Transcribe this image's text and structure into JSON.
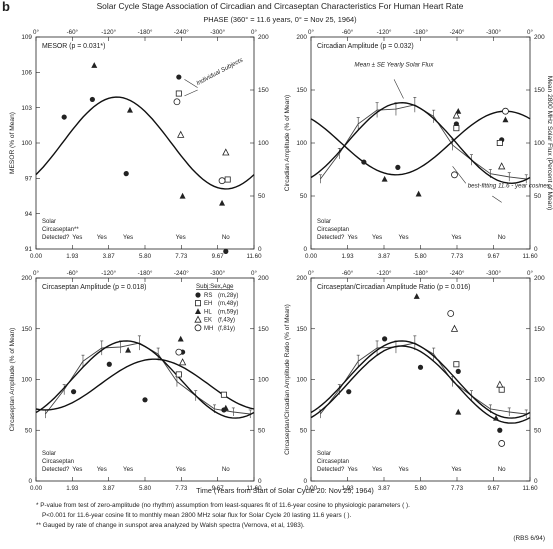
{
  "figure": {
    "panel_letter": "b",
    "title": "Solar Cycle Stage Association of Circadian and Circaseptan Characteristics For Human Heart Rate",
    "phase_label": "PHASE (360° = 11.6 years, 0° = Nov 25, 1964)",
    "xlabel": "Time (Years from Start of Solar Cycle 20: Nov 25, 1964)",
    "right_axis_label": "Mean 2800 MHz Solar Flux (Percent of Mean)",
    "footnotes": [
      "* P-value from test of zero-amplitude (no rhythm) assumption from least-squares fit of 11.6-year cosine to physiologic parameters (          ).",
      "P<0.001 for 11.6-year cosine fit to monthly mean 2800 MHz solar flux for Solar Cycle 20 lasting 11.6 years (          ).",
      "** Gauged by rate of change in sunspot area analyzed by Walsh spectra (Vernova, et al, 1983)."
    ],
    "credit": "(RBS 6/94)"
  },
  "chart_data": [
    {
      "type": "scatter",
      "title": "MESOR (p = 0.031*)",
      "ylabel": "MESOR (% of Mean)",
      "ylim": [
        91,
        109
      ],
      "yticks": [
        "91",
        "94",
        "97",
        "100",
        "103",
        "106",
        "109"
      ],
      "xticks": [
        "0.00",
        "1.93",
        "3.87",
        "5.80",
        "7.73",
        "9.67",
        "11.60"
      ],
      "phase_ticks": [
        "0°",
        "-60°",
        "-120°",
        "-180°",
        "-240°",
        "-300°",
        "0°"
      ],
      "annotations": [
        "Individual Subjects"
      ],
      "detected_label": "Solar Circaseptan** Detected?",
      "detected": [
        "Yes",
        "Yes",
        "Yes",
        "Yes",
        "No"
      ],
      "fit": {
        "mesor": 100.0,
        "amplitude": 3.9,
        "peak_year": 4.3
      },
      "series": [
        {
          "name": "RS",
          "marker": "filled-circle",
          "x": [
            1.5,
            3.0,
            4.8,
            7.6,
            10.1
          ],
          "y": [
            102.2,
            103.7,
            97.4,
            105.6,
            90.8
          ]
        },
        {
          "name": "EH",
          "marker": "open-square",
          "x": [
            7.6,
            10.2
          ],
          "y": [
            104.2,
            96.9
          ]
        },
        {
          "name": "HL",
          "marker": "filled-triangle",
          "x": [
            3.1,
            5.0,
            7.8,
            9.9
          ],
          "y": [
            106.6,
            102.8,
            95.5,
            94.9
          ]
        },
        {
          "name": "EK",
          "marker": "open-triangle",
          "x": [
            7.7,
            10.1
          ],
          "y": [
            100.7,
            99.2
          ]
        },
        {
          "name": "MH",
          "marker": "open-circle",
          "x": [
            7.5,
            9.9
          ],
          "y": [
            103.5,
            96.8
          ]
        }
      ]
    },
    {
      "type": "scatter",
      "title": "Circadian Amplitude (p = 0.032)",
      "ylabel": "Circadian Amplitude (% of Mean)",
      "ylim": [
        0,
        200
      ],
      "yticks": [
        "0",
        "50",
        "100",
        "150",
        "200"
      ],
      "xticks": [
        "0.00",
        "1.93",
        "3.87",
        "5.80",
        "7.73",
        "9.67",
        "11.60"
      ],
      "phase_ticks": [
        "0°",
        "-60°",
        "-120°",
        "-180°",
        "-240°",
        "-300°",
        "0°"
      ],
      "annotations": [
        "Mean ± SE Yearly Solar Flux",
        "best-fitting 11.6 - year cosines"
      ],
      "detected_label": "Solar Circaseptan Detected?",
      "detected": [
        "Yes",
        "Yes",
        "Yes",
        "Yes",
        "No"
      ],
      "fit": {
        "mesor": 100.0,
        "amplitude": 30.0,
        "peak_year": 10.3
      },
      "series": [
        {
          "name": "RS",
          "marker": "filled-circle",
          "x": [
            2.8,
            4.6,
            7.7,
            10.1
          ],
          "y": [
            82,
            77,
            118,
            103
          ]
        },
        {
          "name": "EH",
          "marker": "open-square",
          "x": [
            7.7,
            10.0
          ],
          "y": [
            114,
            100
          ]
        },
        {
          "name": "HL",
          "marker": "filled-triangle",
          "x": [
            3.9,
            5.7,
            7.8,
            10.3
          ],
          "y": [
            66,
            52,
            130,
            122
          ]
        },
        {
          "name": "EK",
          "marker": "open-triangle",
          "x": [
            7.7,
            10.1
          ],
          "y": [
            126,
            78
          ]
        },
        {
          "name": "MH",
          "marker": "open-circle",
          "x": [
            7.6,
            10.3
          ],
          "y": [
            70,
            130
          ]
        }
      ]
    },
    {
      "type": "scatter",
      "title": "Circaseptan Amplitude (p = 0.018)",
      "ylabel": "Circaseptan Amplitude (% of Mean)",
      "ylim": [
        0,
        200
      ],
      "yticks": [
        "0",
        "50",
        "100",
        "150",
        "200"
      ],
      "xticks": [
        "0.00",
        "1.93",
        "3.87",
        "5.80",
        "7.73",
        "9.67",
        "11.60"
      ],
      "phase_ticks": [
        "0°",
        "-60°",
        "-120°",
        "-180°",
        "-240°",
        "-300°",
        "0°"
      ],
      "legend_title": "Subj:Sex,Age",
      "legend": [
        {
          "code": "RS",
          "info": "(m,28y)",
          "marker": "filled-circle"
        },
        {
          "code": "EH",
          "info": "(m,48y)",
          "marker": "open-square"
        },
        {
          "code": "HL",
          "info": "(m,59y)",
          "marker": "filled-triangle"
        },
        {
          "code": "EK",
          "info": "(f,43y)",
          "marker": "open-triangle"
        },
        {
          "code": "MH",
          "info": "(f,81y)",
          "marker": "open-circle"
        }
      ],
      "detected_label": "Solar Circaseptan Detected?",
      "detected": [
        "Yes",
        "Yes",
        "Yes",
        "Yes",
        "No"
      ],
      "fit": {
        "mesor": 95.0,
        "amplitude": 25.0,
        "peak_year": 6.3
      },
      "series": [
        {
          "name": "RS",
          "marker": "filled-circle",
          "x": [
            2.0,
            3.9,
            5.8,
            7.8,
            10.0
          ],
          "y": [
            88,
            115,
            80,
            127,
            70
          ]
        },
        {
          "name": "EH",
          "marker": "open-square",
          "x": [
            7.6,
            10.0
          ],
          "y": [
            105,
            85
          ]
        },
        {
          "name": "HL",
          "marker": "filled-triangle",
          "x": [
            4.9,
            7.7,
            10.1
          ],
          "y": [
            129,
            140,
            72
          ]
        },
        {
          "name": "EK",
          "marker": "open-triangle",
          "x": [
            7.8
          ],
          "y": [
            117
          ]
        },
        {
          "name": "MH",
          "marker": "open-circle",
          "x": [
            7.6
          ],
          "y": [
            127
          ]
        }
      ]
    },
    {
      "type": "scatter",
      "title": "Circaseptan/Circadian Amplitude Ratio (p = 0.016)",
      "ylabel": "Circaseptan/Circadian Amplitude Ratio (% of Mean)",
      "ylim": [
        0,
        200
      ],
      "yticks": [
        "0",
        "50",
        "100",
        "150",
        "200"
      ],
      "xticks": [
        "0.00",
        "1.93",
        "3.87",
        "5.80",
        "7.73",
        "9.67",
        "11.60"
      ],
      "phase_ticks": [
        "0°",
        "-60°",
        "-120°",
        "-180°",
        "-240°",
        "-300°",
        "0°"
      ],
      "detected_label": "Solar Circaseptan Detected?",
      "detected": [
        "Yes",
        "Yes",
        "Yes",
        "Yes",
        "No"
      ],
      "fit": {
        "mesor": 95.0,
        "amplitude": 38.0,
        "peak_year": 4.8
      },
      "series": [
        {
          "name": "RS",
          "marker": "filled-circle",
          "x": [
            2.0,
            3.9,
            5.8,
            7.8,
            10.0
          ],
          "y": [
            88,
            140,
            112,
            108,
            50
          ]
        },
        {
          "name": "EH",
          "marker": "open-square",
          "x": [
            7.7,
            10.1
          ],
          "y": [
            115,
            90
          ]
        },
        {
          "name": "HL",
          "marker": "filled-triangle",
          "x": [
            5.6,
            7.8,
            9.8
          ],
          "y": [
            182,
            68,
            62
          ]
        },
        {
          "name": "EK",
          "marker": "open-triangle",
          "x": [
            7.6,
            10.0
          ],
          "y": [
            150,
            95
          ]
        },
        {
          "name": "MH",
          "marker": "open-circle",
          "x": [
            7.4,
            10.1
          ],
          "y": [
            165,
            37
          ]
        }
      ]
    }
  ],
  "solar_flux": {
    "years": [
      0.5,
      1.5,
      2.5,
      3.5,
      4.5,
      5.5,
      6.5,
      7.5,
      8.5,
      9.5,
      10.5,
      11.4
    ],
    "percent": [
      66,
      90,
      118,
      131,
      132,
      136,
      125,
      98,
      84,
      71,
      68,
      66
    ],
    "se": [
      4,
      5,
      6,
      7,
      6,
      7,
      6,
      5,
      5,
      4,
      4,
      4
    ],
    "fit": {
      "mesor": 100.0,
      "amplitude": 38.0,
      "peak_year": 4.8
    }
  }
}
